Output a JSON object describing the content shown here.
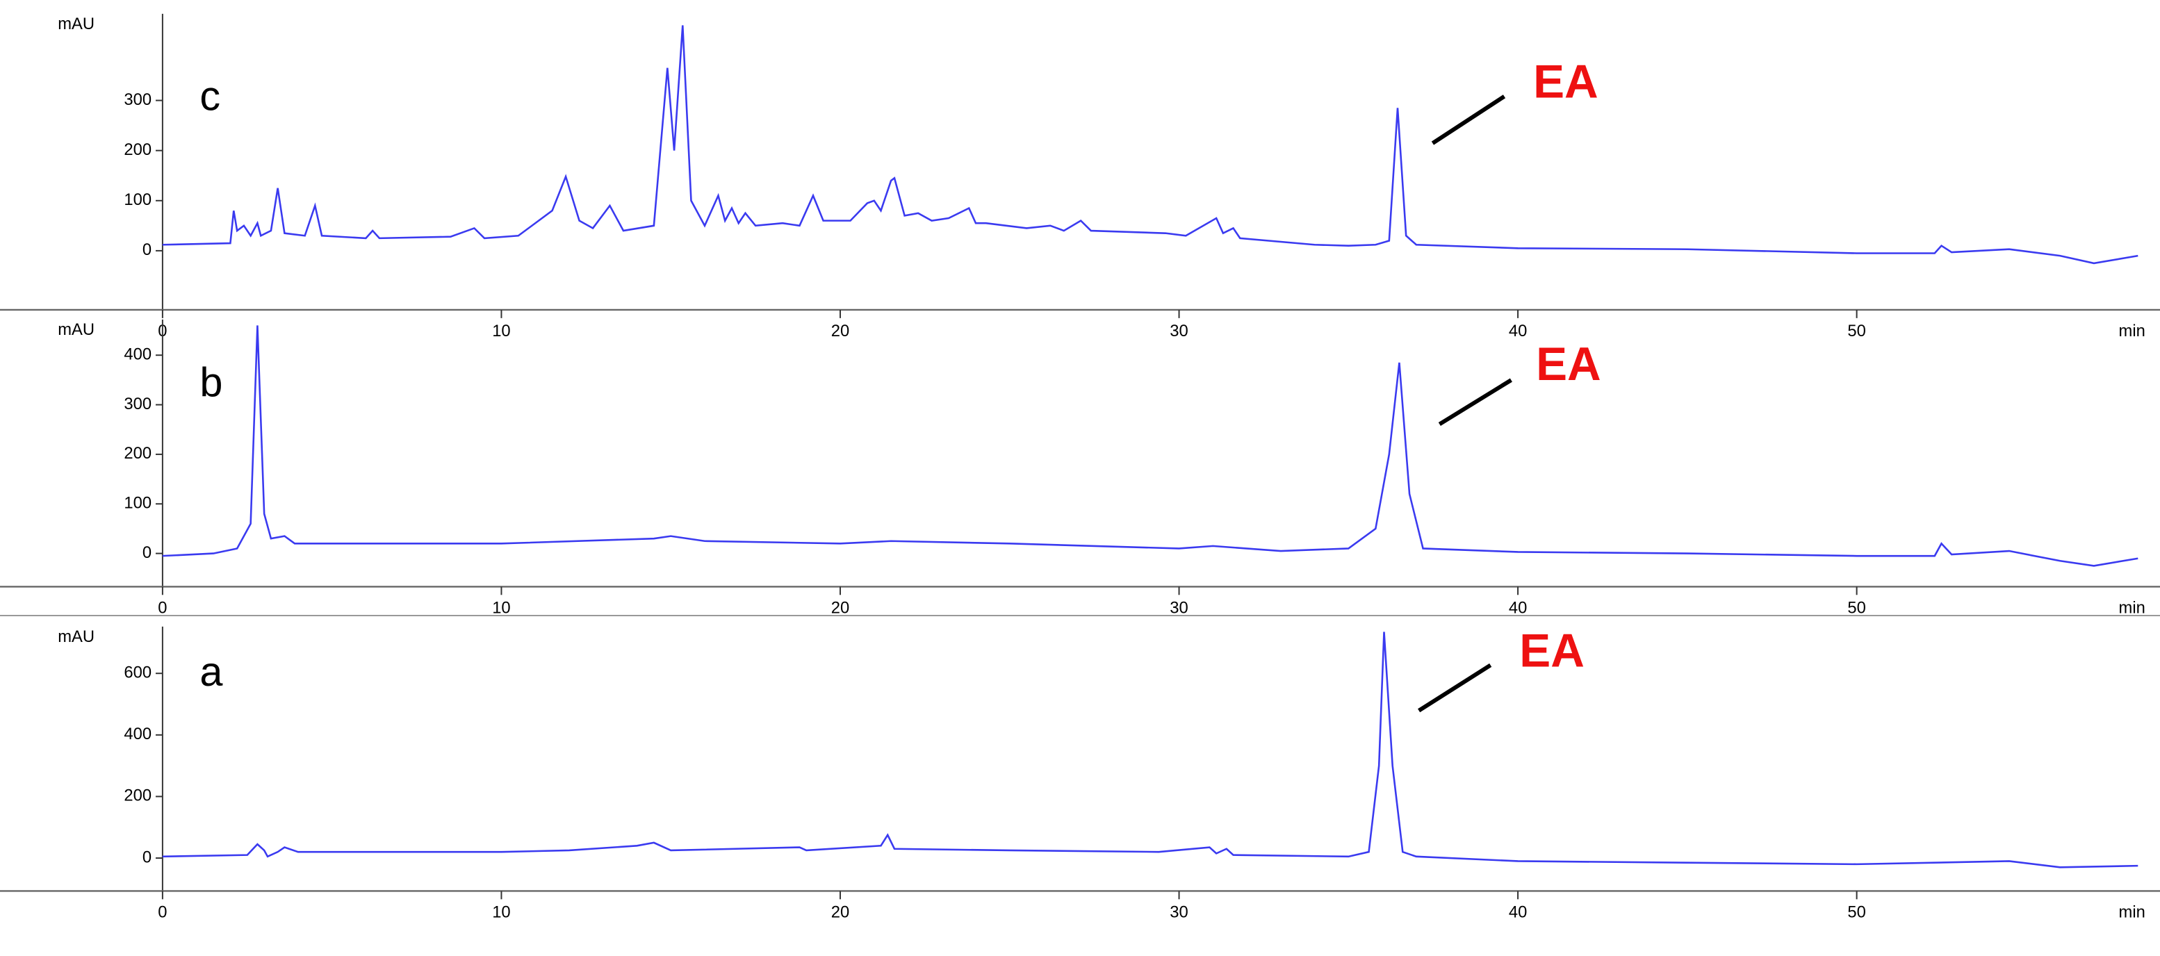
{
  "chart_data": [
    {
      "type": "line",
      "label": "c",
      "annotation": "EA",
      "x_label": "min",
      "y_label": "mAU",
      "x": [
        0,
        2,
        2.1,
        2.2,
        2.4,
        2.6,
        2.8,
        2.9,
        3.2,
        3.4,
        3.6,
        4.2,
        4.5,
        4.7,
        6.0,
        6.2,
        6.4,
        8.5,
        9.2,
        9.5,
        10.5,
        11.5,
        11.9,
        12.3,
        12.7,
        13.2,
        13.6,
        14.5,
        14.9,
        15.1,
        15.35,
        15.6,
        16.0,
        16.4,
        16.6,
        16.8,
        17.0,
        17.2,
        17.5,
        18.3,
        18.8,
        19.2,
        19.5,
        20.3,
        20.8,
        21.0,
        21.2,
        21.5,
        21.6,
        21.9,
        22.3,
        22.7,
        23.2,
        23.8,
        24.0,
        24.3,
        25.5,
        26.2,
        26.6,
        27.1,
        27.4,
        29.6,
        30.2,
        31.1,
        31.3,
        31.6,
        31.8,
        34.0,
        35.0,
        35.8,
        36.2,
        36.45,
        36.7,
        37,
        40,
        45,
        50,
        52.3,
        52.5,
        52.8,
        54.5,
        56,
        57,
        58.3
      ],
      "series": [
        {
          "color": "#3a3af0",
          "values": [
            12,
            15,
            80,
            40,
            50,
            30,
            55,
            30,
            40,
            125,
            35,
            30,
            90,
            30,
            25,
            40,
            25,
            28,
            45,
            25,
            30,
            80,
            148,
            60,
            45,
            90,
            40,
            50,
            365,
            200,
            450,
            100,
            50,
            110,
            60,
            85,
            55,
            75,
            50,
            55,
            50,
            110,
            60,
            60,
            95,
            100,
            80,
            140,
            145,
            70,
            75,
            60,
            65,
            85,
            55,
            55,
            45,
            50,
            40,
            60,
            40,
            35,
            30,
            65,
            35,
            45,
            25,
            12,
            10,
            12,
            20,
            285,
            30,
            12,
            5,
            3,
            -5,
            -5,
            10,
            -3,
            3,
            -10,
            -25,
            -10
          ]
        }
      ],
      "xlim": [
        0,
        58.3
      ],
      "ylim": [
        -118,
        473
      ],
      "xticks": [
        0,
        10,
        20,
        30,
        40,
        50
      ],
      "yticks": [
        0,
        100,
        200,
        300
      ]
    },
    {
      "type": "line",
      "label": "b",
      "annotation": "EA",
      "x_label": "min",
      "y_label": "mAU",
      "x": [
        0,
        1.5,
        2.2,
        2.6,
        2.8,
        3.0,
        3.2,
        3.6,
        3.9,
        10,
        14.5,
        15,
        16,
        20,
        21.5,
        25,
        30,
        31,
        33,
        35,
        35.8,
        36.2,
        36.5,
        36.8,
        37.2,
        40,
        45,
        50,
        52.3,
        52.5,
        52.8,
        54.5,
        56,
        57,
        58.3
      ],
      "series": [
        {
          "color": "#3a3af0",
          "values": [
            -5,
            0,
            10,
            60,
            460,
            80,
            30,
            35,
            20,
            20,
            30,
            35,
            25,
            20,
            25,
            20,
            10,
            15,
            5,
            10,
            50,
            200,
            385,
            120,
            10,
            3,
            0,
            -5,
            -5,
            20,
            -2,
            5,
            -15,
            -25,
            -10
          ]
        }
      ],
      "xlim": [
        0,
        58.3
      ],
      "ylim": [
        -67,
        472
      ],
      "xticks": [
        0,
        10,
        20,
        30,
        40,
        50
      ],
      "yticks": [
        0,
        100,
        200,
        300,
        400
      ]
    },
    {
      "type": "line",
      "label": "a",
      "annotation": "EA",
      "x_label": "min",
      "y_label": "mAU",
      "x": [
        0,
        2.5,
        2.8,
        3.0,
        3.1,
        3.4,
        3.6,
        4,
        10,
        12,
        14,
        14.5,
        15,
        18.8,
        19,
        21.2,
        21.4,
        21.6,
        25,
        29.4,
        30.9,
        31.1,
        31.4,
        31.6,
        35,
        35.6,
        35.9,
        36.05,
        36.3,
        36.6,
        37,
        40,
        45,
        50,
        54.5,
        56,
        58.3
      ],
      "series": [
        {
          "color": "#3a3af0",
          "values": [
            5,
            10,
            45,
            25,
            5,
            20,
            35,
            20,
            20,
            25,
            40,
            50,
            25,
            35,
            25,
            40,
            75,
            30,
            25,
            20,
            35,
            15,
            30,
            10,
            5,
            20,
            300,
            735,
            300,
            20,
            5,
            -10,
            -15,
            -20,
            -10,
            -30,
            -25
          ]
        }
      ],
      "xlim": [
        0,
        58.3
      ],
      "ylim": [
        -107,
        752
      ],
      "xticks": [
        0,
        10,
        20,
        30,
        40,
        50
      ],
      "yticks": [
        0,
        200,
        400,
        600
      ]
    }
  ]
}
